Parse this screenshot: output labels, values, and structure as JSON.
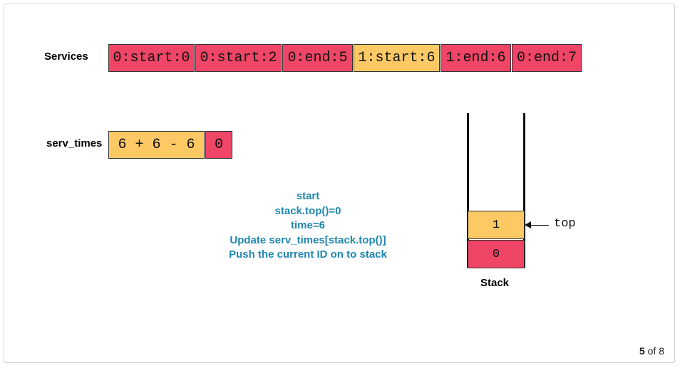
{
  "colors": {
    "red": "#ef4566",
    "yellow": "#fdc965",
    "accent_text": "#1f86b0"
  },
  "services": {
    "label": "Services",
    "cells": [
      {
        "text": "0:start:0",
        "color": "red"
      },
      {
        "text": "0:start:2",
        "color": "red"
      },
      {
        "text": "0:end:5",
        "color": "red"
      },
      {
        "text": "1:start:6",
        "color": "yellow"
      },
      {
        "text": "1:end:6",
        "color": "red"
      },
      {
        "text": "0:end:7",
        "color": "red"
      }
    ]
  },
  "serv_times": {
    "label": "serv_times",
    "cells": [
      {
        "text": "6 + 6 - 6",
        "color": "yellow"
      },
      {
        "text": "0",
        "color": "red"
      }
    ]
  },
  "explanation": {
    "lines": [
      "start",
      "stack.top()=0",
      "time=6",
      "Update serv_times[stack.top()]",
      "Push the current ID on to stack"
    ]
  },
  "stack": {
    "label": "Stack",
    "top_label": "top",
    "items": [
      {
        "text": "1",
        "color": "yellow"
      },
      {
        "text": "0",
        "color": "red"
      }
    ]
  },
  "pager": {
    "current": "5",
    "of_label": "of",
    "total": "8"
  }
}
